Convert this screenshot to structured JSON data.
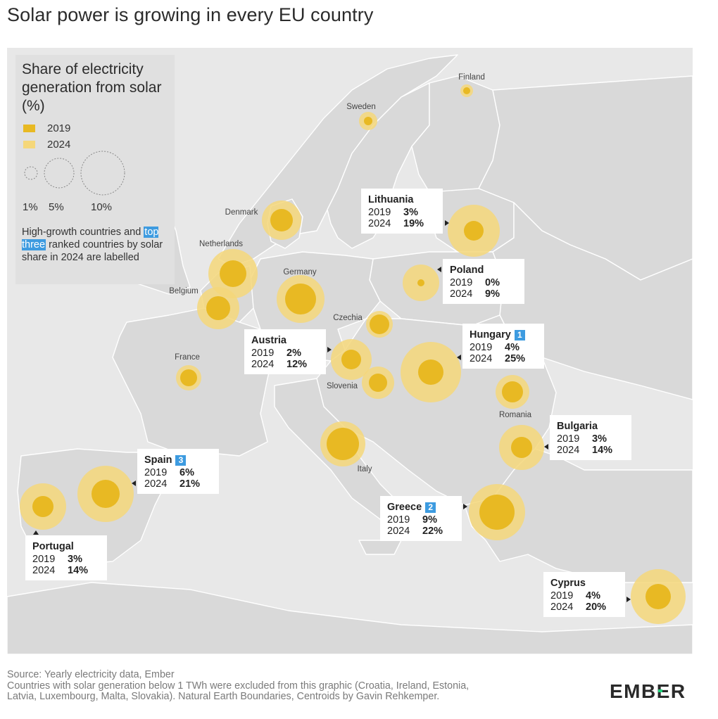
{
  "title": "Solar power is growing in every EU country",
  "legend": {
    "title": "Share of electricity generation from solar (%)",
    "series": [
      {
        "label": "2019",
        "color": "#e8b923"
      },
      {
        "label": "2024",
        "color": "#f5d77a"
      }
    ],
    "size_labels": [
      "1%",
      "5%",
      "10%"
    ],
    "note_before": "High-growth countries and ",
    "note_highlight": "top three",
    "note_after": " ranked countries by solar share in 2024 are labelled"
  },
  "countries": [
    {
      "name": "Finland",
      "labelled": false
    },
    {
      "name": "Sweden",
      "labelled": false
    },
    {
      "name": "Denmark",
      "labelled": false
    },
    {
      "name": "Netherlands",
      "labelled": false
    },
    {
      "name": "Belgium",
      "labelled": false
    },
    {
      "name": "Germany",
      "labelled": false
    },
    {
      "name": "France",
      "labelled": false
    },
    {
      "name": "Czechia",
      "labelled": false
    },
    {
      "name": "Slovenia",
      "labelled": false
    },
    {
      "name": "Romania",
      "labelled": false
    },
    {
      "name": "Italy",
      "labelled": false
    },
    {
      "name": "Lithuania",
      "labelled": true,
      "v2019": "3%",
      "v2024": "19%"
    },
    {
      "name": "Poland",
      "labelled": true,
      "v2019": "0%",
      "v2024": "9%"
    },
    {
      "name": "Hungary",
      "labelled": true,
      "rank": "1",
      "v2019": "4%",
      "v2024": "25%"
    },
    {
      "name": "Austria",
      "labelled": true,
      "v2019": "2%",
      "v2024": "12%"
    },
    {
      "name": "Bulgaria",
      "labelled": true,
      "v2019": "3%",
      "v2024": "14%"
    },
    {
      "name": "Spain",
      "labelled": true,
      "rank": "3",
      "v2019": "6%",
      "v2024": "21%"
    },
    {
      "name": "Greece",
      "labelled": true,
      "rank": "2",
      "v2019": "9%",
      "v2024": "22%"
    },
    {
      "name": "Portugal",
      "labelled": true,
      "v2019": "3%",
      "v2024": "14%"
    },
    {
      "name": "Cyprus",
      "labelled": true,
      "v2019": "4%",
      "v2024": "20%"
    }
  ],
  "year_labels": {
    "y2019": "2019",
    "y2024": "2024"
  },
  "footer": {
    "source": "Source: Yearly electricity data, Ember",
    "note_line1": "Countries with solar generation below 1 TWh were excluded from this graphic (Croatia, Ireland, Estonia,",
    "note_line2": "Latvia, Luxembourg, Malta, Slovakia). Natural Earth Boundaries, Centroids by Gavin Rehkemper."
  },
  "logo": "EMBER"
}
